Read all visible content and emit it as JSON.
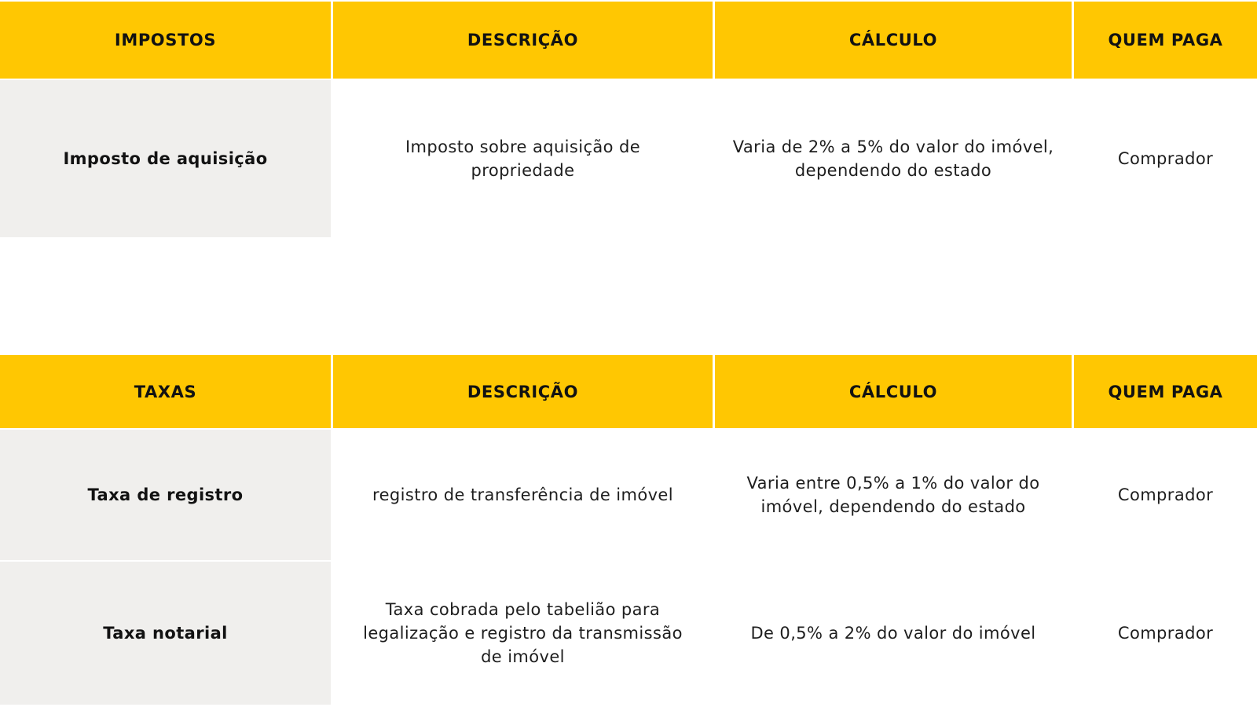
{
  "theme": {
    "background": "#ffffff",
    "header_yellow": "#ffc702",
    "row_gray": "#f0efed",
    "text_strong": "#121212",
    "text_body": "#1e1e1e"
  },
  "tables": [
    {
      "id": "impostos",
      "headers": [
        "IMPOSTOS",
        "DESCRIÇÃO",
        "CÁLCULO",
        "QUEM PAGA"
      ],
      "rows": [
        {
          "name": "Imposto de aquisição",
          "description": "Imposto sobre aquisição de propriedade",
          "calculation": "Varia de 2% a 5% do valor do imóvel, dependendo do estado",
          "payer": "Comprador"
        }
      ]
    },
    {
      "id": "taxas",
      "headers": [
        "TAXAS",
        "DESCRIÇÃO",
        "CÁLCULO",
        "QUEM PAGA"
      ],
      "rows": [
        {
          "name": "Taxa de registro",
          "description": "registro de transferência de imóvel",
          "calculation": "Varia entre 0,5% a 1% do valor do imóvel, dependendo do estado",
          "payer": "Comprador"
        },
        {
          "name": "Taxa  notarial",
          "description": "Taxa cobrada pelo tabelião para legalização e registro da transmissão de imóvel",
          "calculation": "De 0,5% a 2% do valor do imóvel",
          "payer": "Comprador"
        }
      ]
    }
  ]
}
